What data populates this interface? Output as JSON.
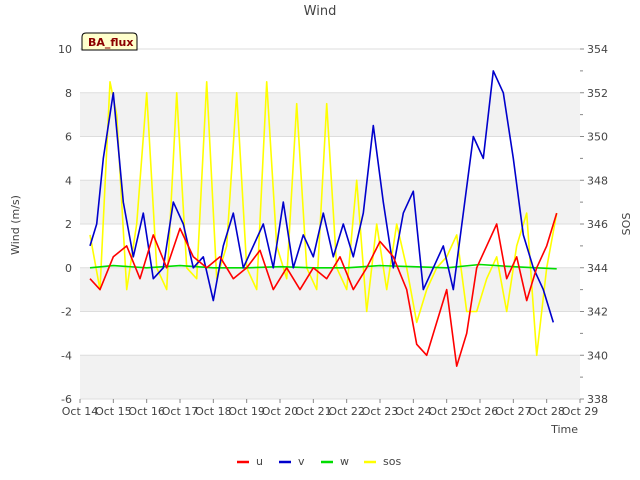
{
  "chart_data": {
    "type": "line",
    "title": "Wind",
    "xlabel": "Time",
    "ylabel": "Wind (m/s)",
    "y2label": "SOS",
    "badge": "BA_flux",
    "xlim": [
      14,
      29
    ],
    "ylim": [
      -6,
      10
    ],
    "y2lim": [
      338,
      354
    ],
    "x_ticks": [
      14,
      15,
      16,
      17,
      18,
      19,
      20,
      21,
      22,
      23,
      24,
      25,
      26,
      27,
      28,
      29
    ],
    "x_tick_labels": [
      "Oct 14",
      "Oct 15",
      "Oct 16",
      "Oct 17",
      "Oct 18",
      "Oct 19",
      "Oct 20",
      "Oct 21",
      "Oct 22",
      "Oct 23",
      "Oct 24",
      "Oct 25",
      "Oct 26",
      "Oct 27",
      "Oct 28",
      "Oct 29"
    ],
    "y_ticks": [
      -6,
      -4,
      -2,
      0,
      2,
      4,
      6,
      8,
      10
    ],
    "y2_ticks": [
      338,
      340,
      342,
      344,
      346,
      348,
      350,
      352,
      354
    ],
    "grid_bands": true,
    "legend_position": "bottom-center",
    "series": [
      {
        "name": "u",
        "axis": "left",
        "color": "#ff0000",
        "x": [
          14.3,
          14.6,
          15.0,
          15.4,
          15.8,
          16.2,
          16.6,
          17.0,
          17.4,
          17.8,
          18.2,
          18.6,
          19.0,
          19.4,
          19.8,
          20.2,
          20.6,
          21.0,
          21.4,
          21.8,
          22.2,
          22.6,
          23.0,
          23.4,
          23.8,
          24.1,
          24.4,
          24.7,
          25.0,
          25.3,
          25.6,
          25.9,
          26.2,
          26.5,
          26.8,
          27.1,
          27.4,
          27.7,
          28.0,
          28.3
        ],
        "y": [
          -0.5,
          -1.0,
          0.5,
          1.0,
          -0.5,
          1.5,
          0.0,
          1.8,
          0.5,
          0.0,
          0.5,
          -0.5,
          0.0,
          0.8,
          -1.0,
          0.0,
          -1.0,
          0.0,
          -0.5,
          0.5,
          -1.0,
          0.0,
          1.2,
          0.5,
          -1.0,
          -3.5,
          -4.0,
          -2.5,
          -1.0,
          -4.5,
          -3.0,
          0.0,
          1.0,
          2.0,
          -0.5,
          0.5,
          -1.5,
          0.0,
          1.0,
          2.5
        ]
      },
      {
        "name": "v",
        "axis": "left",
        "color": "#0000cc",
        "x": [
          14.3,
          14.5,
          14.7,
          15.0,
          15.3,
          15.6,
          15.9,
          16.2,
          16.5,
          16.8,
          17.1,
          17.4,
          17.7,
          18.0,
          18.3,
          18.6,
          18.9,
          19.2,
          19.5,
          19.8,
          20.1,
          20.4,
          20.7,
          21.0,
          21.3,
          21.6,
          21.9,
          22.2,
          22.5,
          22.8,
          23.1,
          23.4,
          23.7,
          24.0,
          24.3,
          24.6,
          24.9,
          25.2,
          25.5,
          25.8,
          26.1,
          26.4,
          26.7,
          27.0,
          27.3,
          27.6,
          27.9,
          28.2
        ],
        "y": [
          1.0,
          2.0,
          5.0,
          8.0,
          3.0,
          0.5,
          2.5,
          -0.5,
          0.0,
          3.0,
          2.0,
          0.0,
          0.5,
          -1.5,
          1.0,
          2.5,
          0.0,
          1.0,
          2.0,
          0.0,
          3.0,
          0.0,
          1.5,
          0.5,
          2.5,
          0.5,
          2.0,
          0.5,
          2.5,
          6.5,
          3.0,
          0.0,
          2.5,
          3.5,
          -1.0,
          0.0,
          1.0,
          -1.0,
          2.5,
          6.0,
          5.0,
          9.0,
          8.0,
          5.0,
          1.5,
          0.0,
          -1.0,
          -2.5
        ]
      },
      {
        "name": "w",
        "axis": "left",
        "color": "#00dd00",
        "x": [
          14.3,
          15.0,
          16.0,
          17.0,
          18.0,
          19.0,
          20.0,
          21.0,
          22.0,
          23.0,
          24.0,
          25.0,
          26.0,
          27.0,
          28.3
        ],
        "y": [
          0.0,
          0.1,
          0.0,
          0.1,
          0.0,
          0.0,
          0.05,
          0.0,
          0.0,
          0.1,
          0.05,
          0.0,
          0.15,
          0.05,
          -0.05
        ]
      },
      {
        "name": "sos",
        "axis": "right",
        "color": "#ffff00",
        "x": [
          14.3,
          14.6,
          14.9,
          15.1,
          15.4,
          15.7,
          16.0,
          16.3,
          16.6,
          16.9,
          17.2,
          17.5,
          17.8,
          18.1,
          18.4,
          18.7,
          19.0,
          19.3,
          19.6,
          19.9,
          20.2,
          20.5,
          20.8,
          21.1,
          21.4,
          21.7,
          22.0,
          22.3,
          22.6,
          22.9,
          23.2,
          23.5,
          23.8,
          24.1,
          24.4,
          24.7,
          25.0,
          25.3,
          25.6,
          25.9,
          26.2,
          26.5,
          26.8,
          27.1,
          27.4,
          27.7,
          28.0,
          28.3
        ],
        "y": [
          345.5,
          343.0,
          352.5,
          351.0,
          343.0,
          346.0,
          352.0,
          344.0,
          343.0,
          352.0,
          344.0,
          343.5,
          352.5,
          343.5,
          345.0,
          352.0,
          344.0,
          343.0,
          352.5,
          345.0,
          343.5,
          351.5,
          344.0,
          343.0,
          351.5,
          344.0,
          343.0,
          348.0,
          342.0,
          346.0,
          343.0,
          346.0,
          344.0,
          341.5,
          343.0,
          344.0,
          344.5,
          345.5,
          342.0,
          342.0,
          343.5,
          344.5,
          342.0,
          345.0,
          346.5,
          340.0,
          344.0,
          346.5
        ]
      }
    ]
  }
}
